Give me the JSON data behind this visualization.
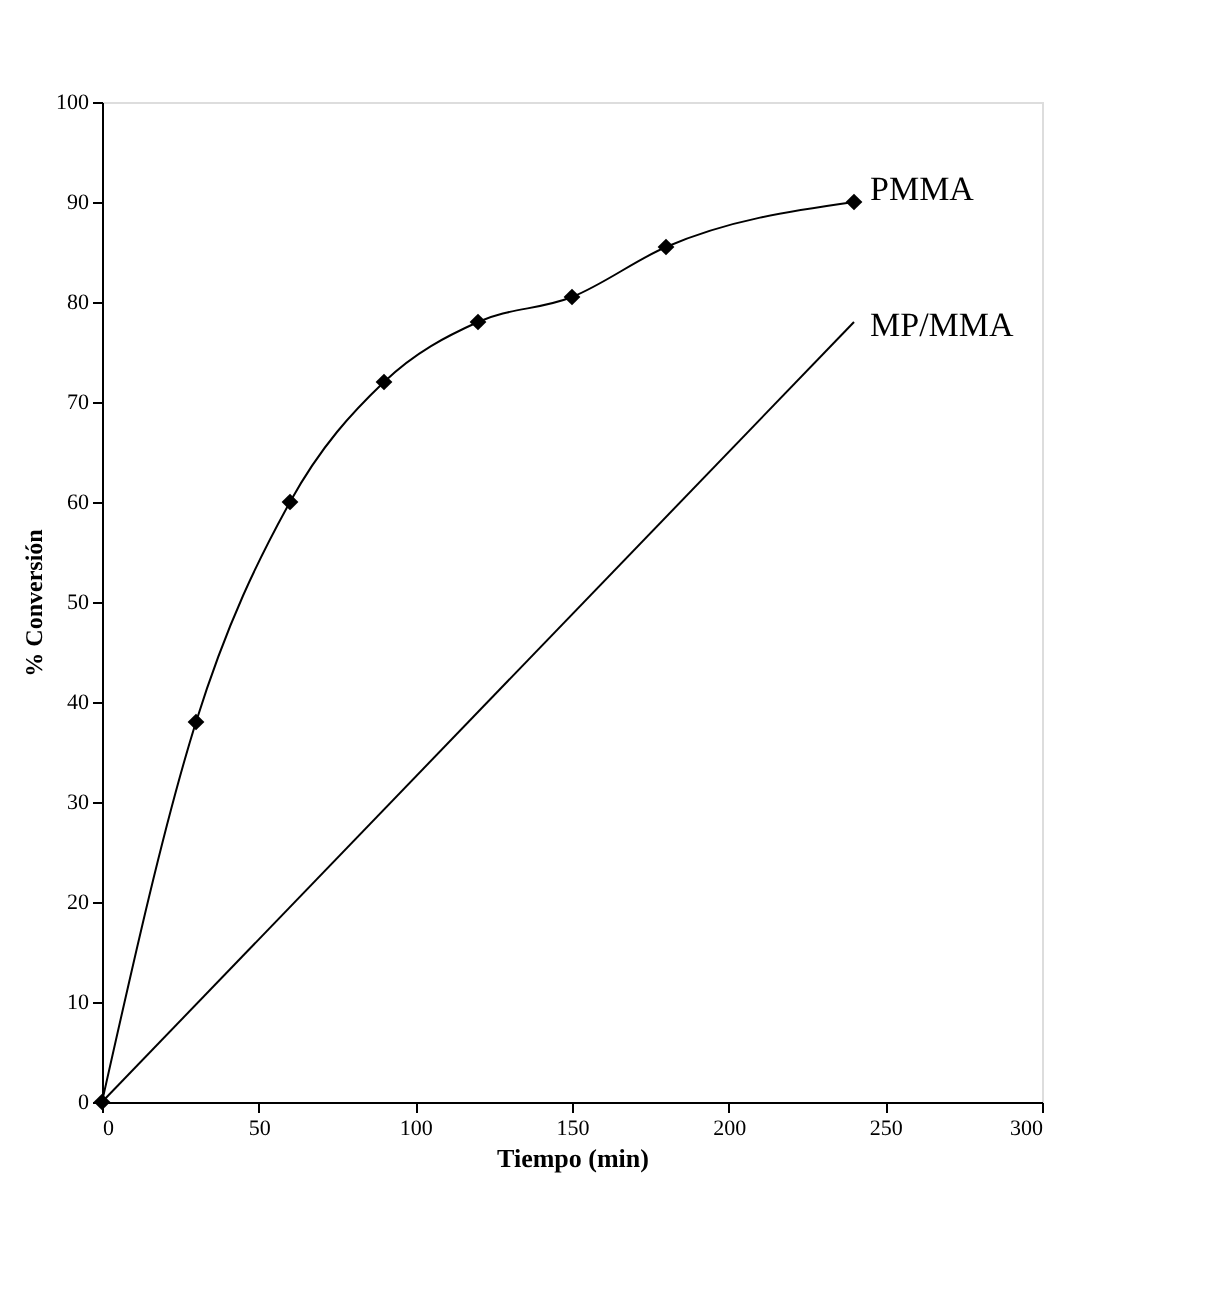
{
  "chart_data": {
    "type": "line",
    "xlabel": "Tiempo (min)",
    "ylabel": "% Conversión",
    "xlim": [
      0,
      300
    ],
    "xticks": [
      0,
      50,
      100,
      150,
      200,
      250,
      300
    ],
    "ylim": [
      0,
      100
    ],
    "yticks": [
      0,
      10,
      20,
      30,
      40,
      50,
      60,
      70,
      80,
      90,
      100
    ],
    "grid": false,
    "legend": false,
    "series": [
      {
        "name": "PMMA",
        "color": "#000000",
        "marker": "diamond",
        "x": [
          0,
          30,
          60,
          90,
          120,
          150,
          180,
          240
        ],
        "values": [
          0,
          38,
          60,
          72,
          78,
          80.5,
          85.5,
          90
        ]
      },
      {
        "name": "MP/MMA",
        "color": "#000000",
        "marker": "none",
        "x": [
          0,
          240
        ],
        "values": [
          0,
          78
        ]
      }
    ]
  }
}
